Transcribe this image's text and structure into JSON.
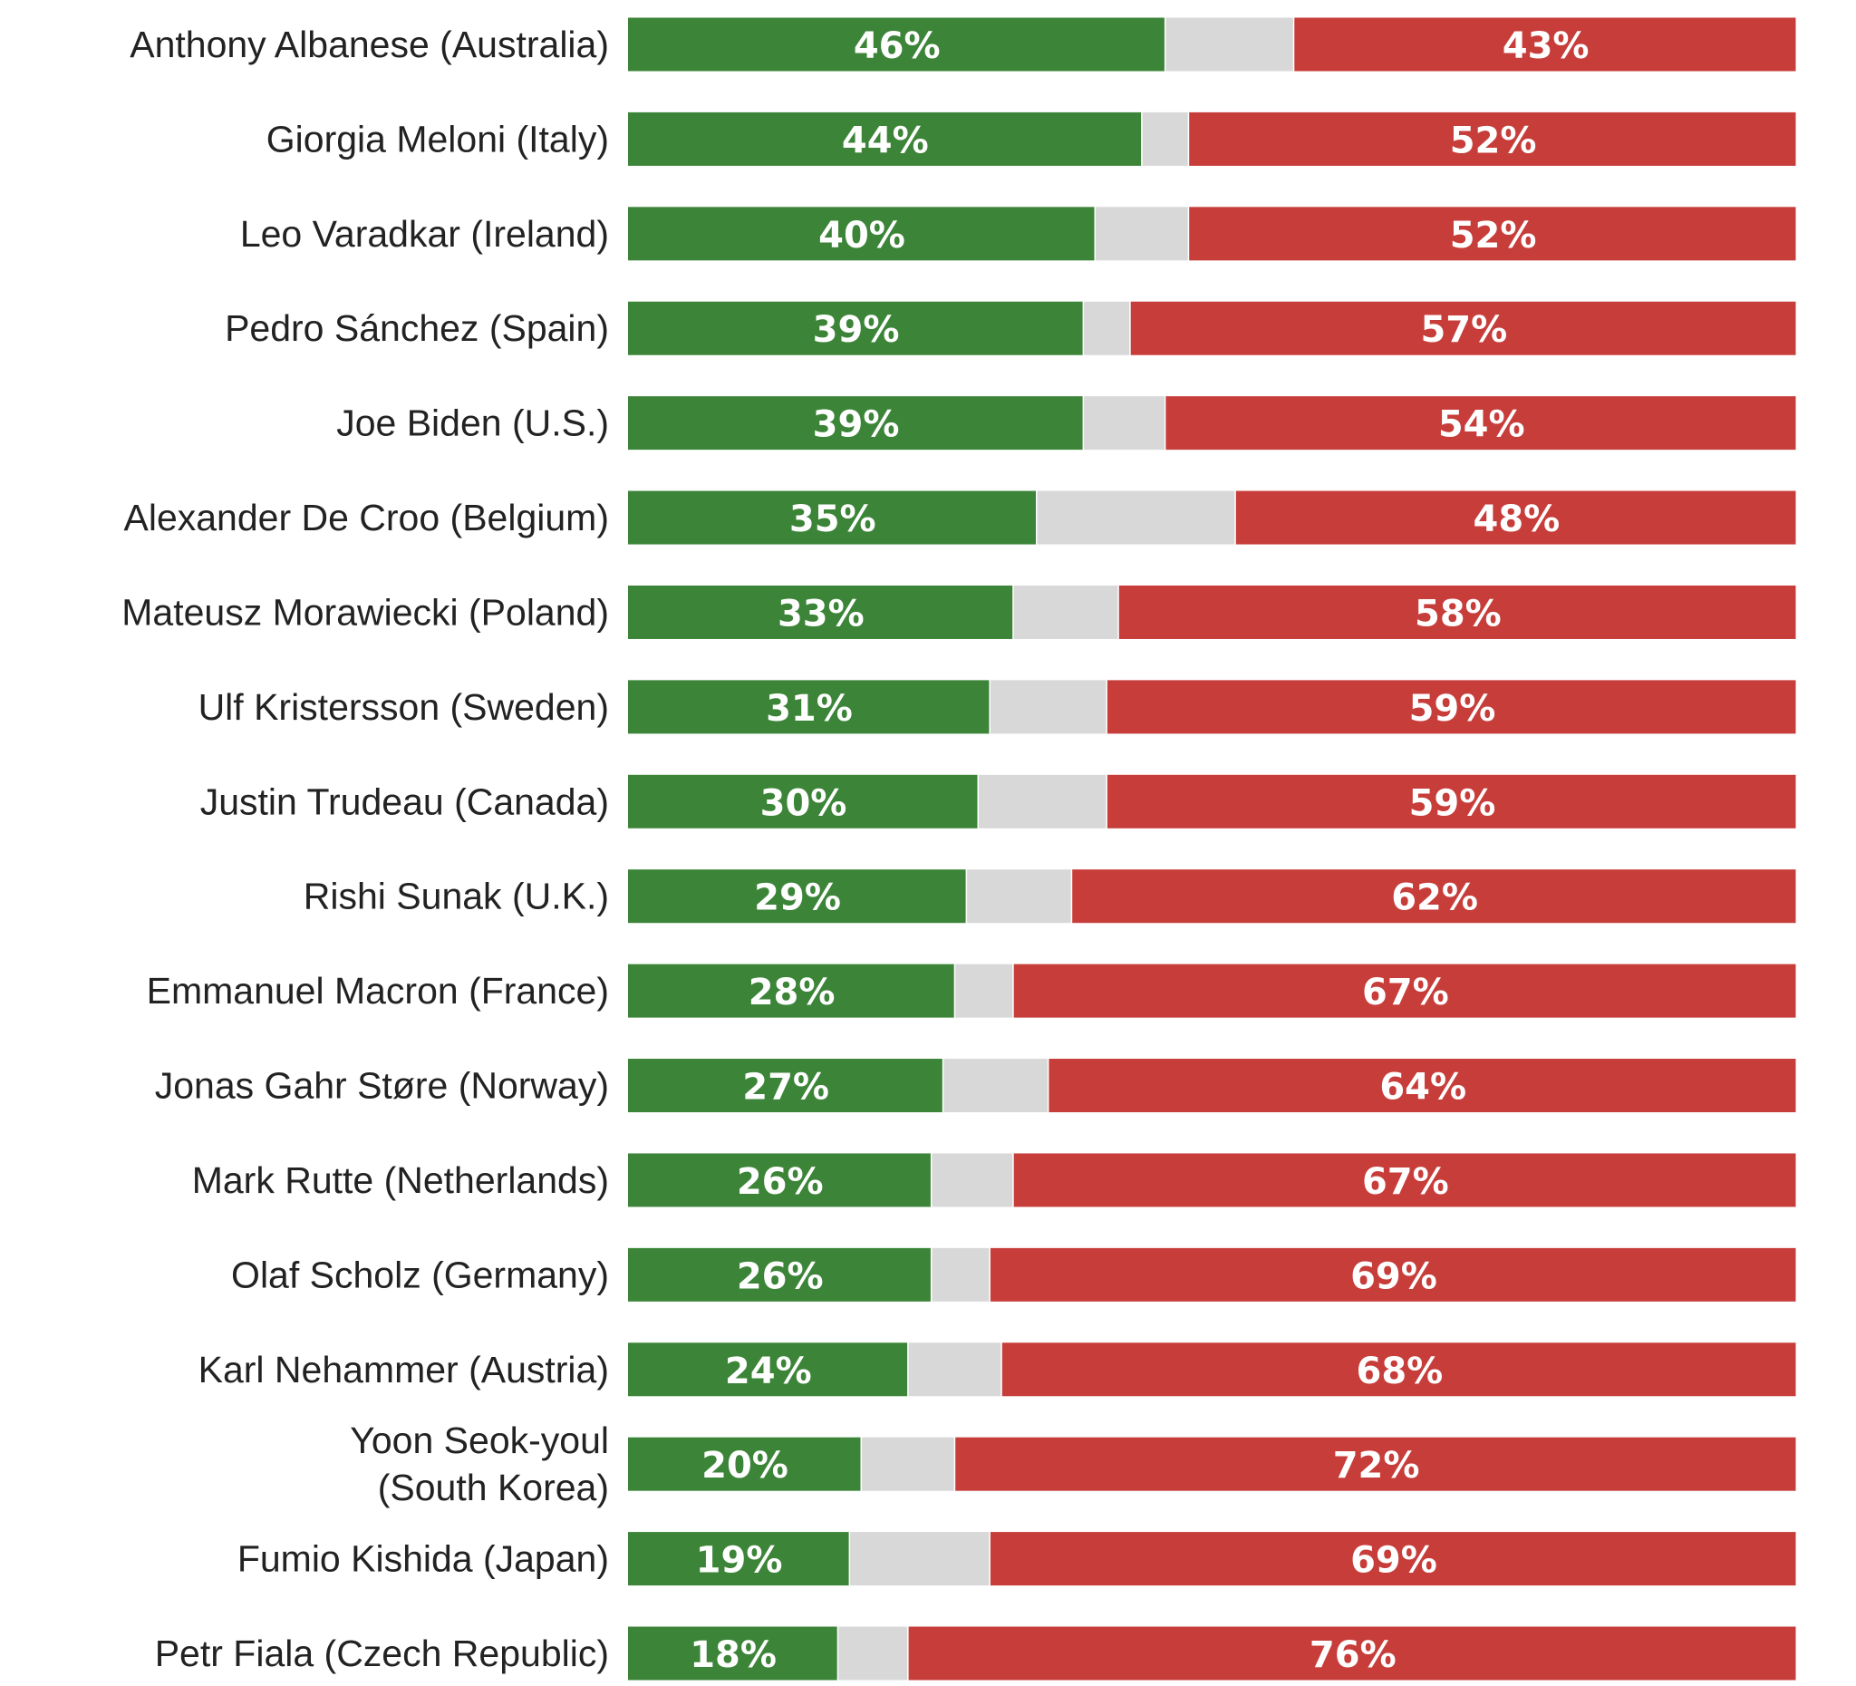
{
  "chart_data": {
    "type": "bar",
    "orientation": "horizontal",
    "stacked": true,
    "xlim": [
      0,
      100
    ],
    "grid": false,
    "legend": "none",
    "categories": [
      "Anthony Albanese (Australia)",
      "Giorgia Meloni (Italy)",
      "Leo Varadkar (Ireland)",
      "Pedro Sánchez (Spain)",
      "Joe Biden (U.S.)",
      "Alexander De Croo (Belgium)",
      "Mateusz Morawiecki (Poland)",
      "Ulf Kristersson (Sweden)",
      "Justin Trudeau (Canada)",
      "Rishi Sunak (U.K.)",
      "Emmanuel Macron (France)",
      "Jonas Gahr Støre (Norway)",
      "Mark Rutte (Netherlands)",
      "Olaf Scholz (Germany)",
      "Karl Nehammer (Austria)",
      "Yoon Seok-youl (South Korea)",
      "Fumio Kishida (Japan)",
      "Petr Fiala (Czech Republic)"
    ],
    "category_label_lines": [
      [
        "Anthony Albanese (Australia)"
      ],
      [
        "Giorgia Meloni (Italy)"
      ],
      [
        "Leo Varadkar (Ireland)"
      ],
      [
        "Pedro Sánchez (Spain)"
      ],
      [
        "Joe Biden (U.S.)"
      ],
      [
        "Alexander De Croo (Belgium)"
      ],
      [
        "Mateusz Morawiecki (Poland)"
      ],
      [
        "Ulf Kristersson (Sweden)"
      ],
      [
        "Justin Trudeau (Canada)"
      ],
      [
        "Rishi Sunak (U.K.)"
      ],
      [
        "Emmanuel Macron (France)"
      ],
      [
        "Jonas Gahr Støre (Norway)"
      ],
      [
        "Mark Rutte (Netherlands)"
      ],
      [
        "Olaf Scholz (Germany)"
      ],
      [
        "Karl Nehammer (Austria)"
      ],
      [
        "Yoon Seok-youl",
        "(South Korea)"
      ],
      [
        "Fumio Kishida (Japan)"
      ],
      [
        "Petr Fiala (Czech Republic)"
      ]
    ],
    "series": [
      {
        "color": "#3c8538",
        "show_labels": true,
        "values": [
          46,
          44,
          40,
          39,
          39,
          35,
          33,
          31,
          30,
          29,
          28,
          27,
          26,
          26,
          24,
          20,
          19,
          18
        ],
        "labels": [
          "46%",
          "44%",
          "40%",
          "39%",
          "39%",
          "35%",
          "33%",
          "31%",
          "30%",
          "29%",
          "28%",
          "27%",
          "26%",
          "26%",
          "24%",
          "20%",
          "19%",
          "18%"
        ]
      },
      {
        "color": "#d8d8d8",
        "show_labels": false,
        "values": [
          11,
          4,
          8,
          4,
          7,
          17,
          9,
          10,
          11,
          9,
          5,
          9,
          7,
          5,
          8,
          8,
          12,
          6
        ],
        "labels": []
      },
      {
        "color": "#c73d3a",
        "show_labels": true,
        "values": [
          43,
          52,
          52,
          57,
          54,
          48,
          58,
          59,
          59,
          62,
          67,
          64,
          67,
          69,
          68,
          72,
          69,
          76
        ],
        "labels": [
          "43%",
          "52%",
          "52%",
          "57%",
          "54%",
          "48%",
          "58%",
          "59%",
          "59%",
          "62%",
          "67%",
          "64%",
          "67%",
          "69%",
          "68%",
          "72%",
          "69%",
          "76%"
        ]
      }
    ]
  }
}
